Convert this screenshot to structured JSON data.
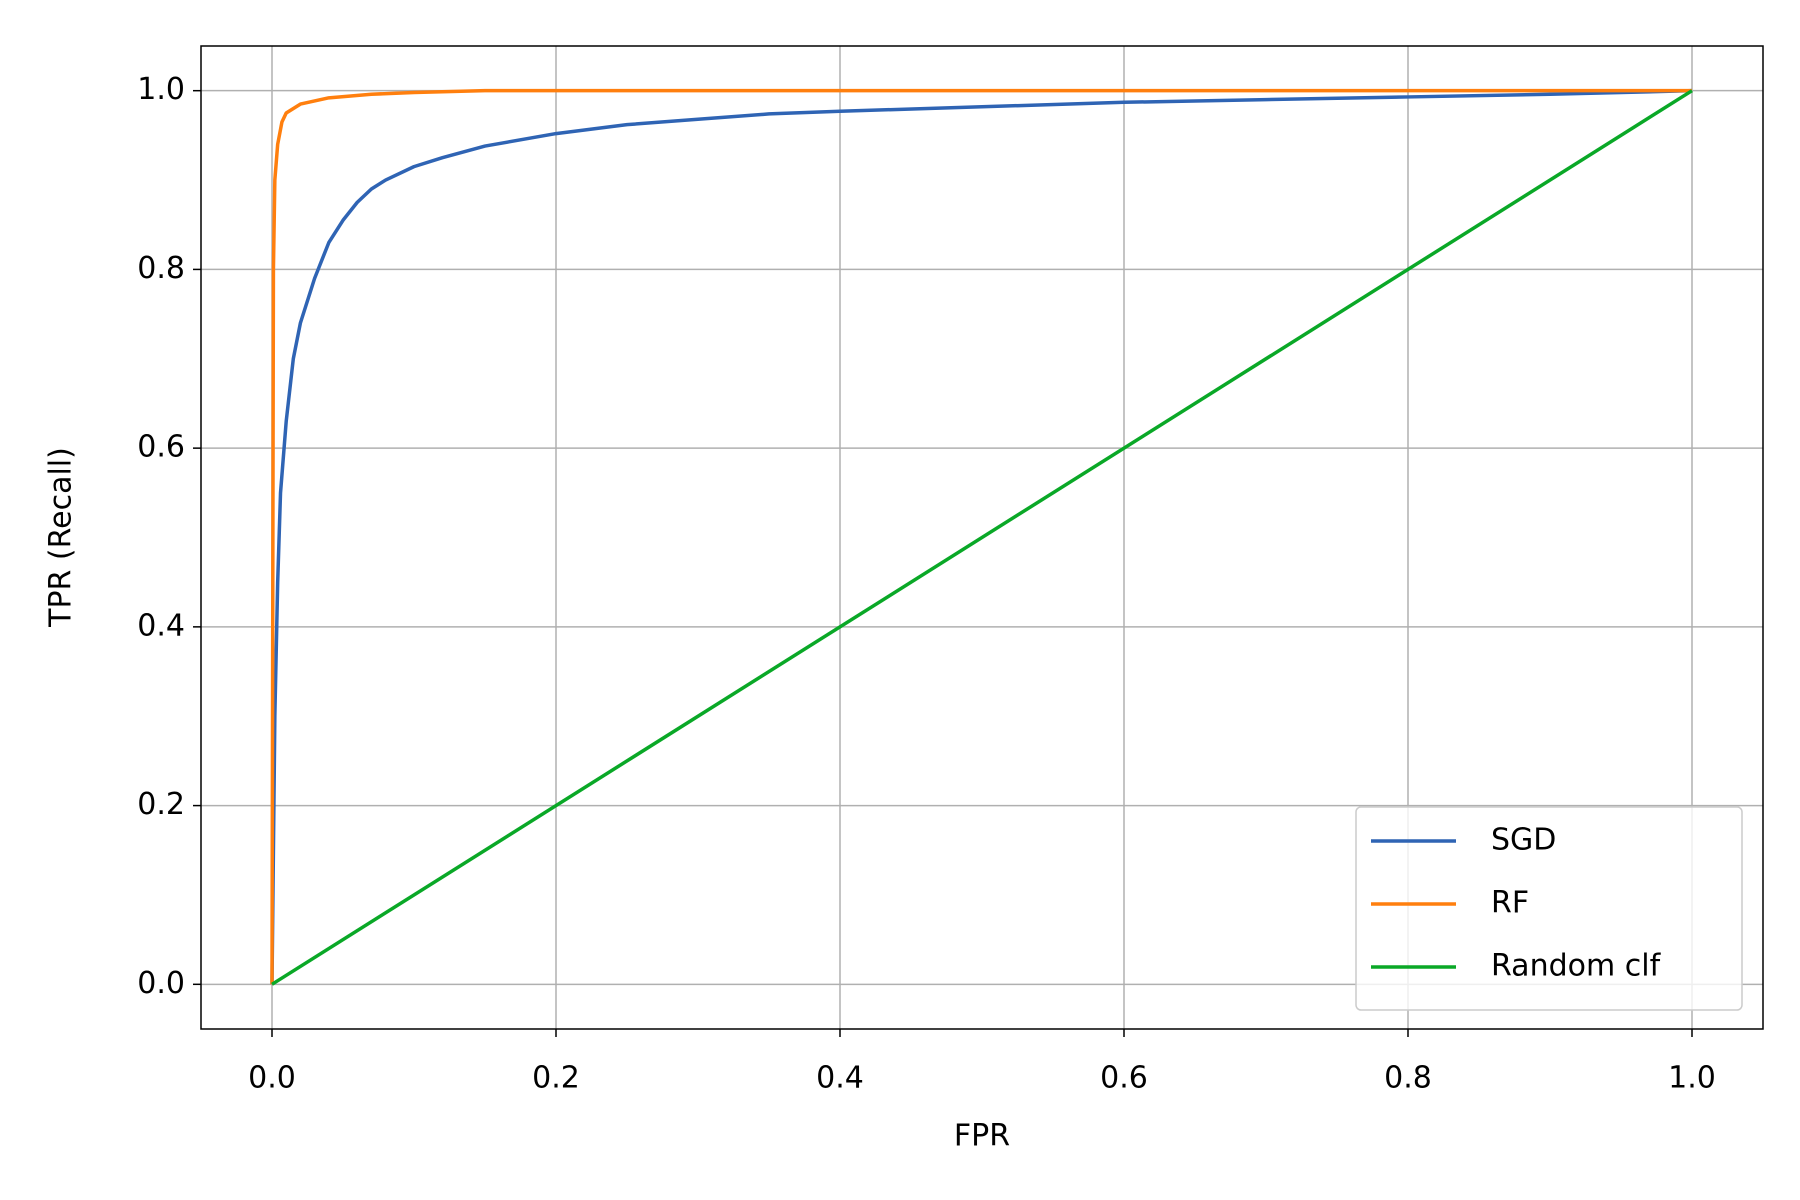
{
  "chart_data": {
    "type": "line",
    "x_label": "FPR",
    "y_label": "TPR (Recall)",
    "xlim": [
      -0.05,
      1.05
    ],
    "ylim": [
      -0.05,
      1.05
    ],
    "xticks": [
      {
        "value": 0,
        "label": "0.0"
      },
      0.2,
      0.4,
      0.6,
      0.8,
      {
        "value": 1,
        "label": "1.0"
      }
    ],
    "yticks": [
      {
        "value": 0,
        "label": "0.0"
      },
      0.2,
      0.4,
      0.6,
      0.8,
      {
        "value": 1,
        "label": "1.0"
      }
    ],
    "grid": true,
    "legend": "lower right",
    "series": [
      {
        "name": "SGD",
        "color": "#2f64b4",
        "x": [
          0,
          0.002,
          0.004,
          0.006,
          0.01,
          0.015,
          0.02,
          0.03,
          0.04,
          0.05,
          0.06,
          0.07,
          0.08,
          0.1,
          0.12,
          0.15,
          0.2,
          0.25,
          0.3,
          0.35,
          0.4,
          0.5,
          0.6,
          0.7,
          0.8,
          0.9,
          1
        ],
        "values": [
          0,
          0.3,
          0.45,
          0.55,
          0.63,
          0.7,
          0.74,
          0.79,
          0.83,
          0.855,
          0.875,
          0.89,
          0.9,
          0.915,
          0.925,
          0.938,
          0.952,
          0.962,
          0.968,
          0.974,
          0.977,
          0.982,
          0.987,
          0.99,
          0.993,
          0.996,
          1
        ]
      },
      {
        "name": "RF",
        "color": "#ff7f0e",
        "x": [
          0,
          0.001,
          0.002,
          0.004,
          0.007,
          0.01,
          0.02,
          0.04,
          0.07,
          0.1,
          0.15,
          1
        ],
        "values": [
          0,
          0.8,
          0.9,
          0.94,
          0.965,
          0.975,
          0.985,
          0.992,
          0.996,
          0.998,
          1,
          1
        ]
      },
      {
        "name": "Random clf",
        "color": "#0aa827",
        "x": [
          0,
          1
        ],
        "values": [
          0,
          1
        ]
      }
    ]
  }
}
